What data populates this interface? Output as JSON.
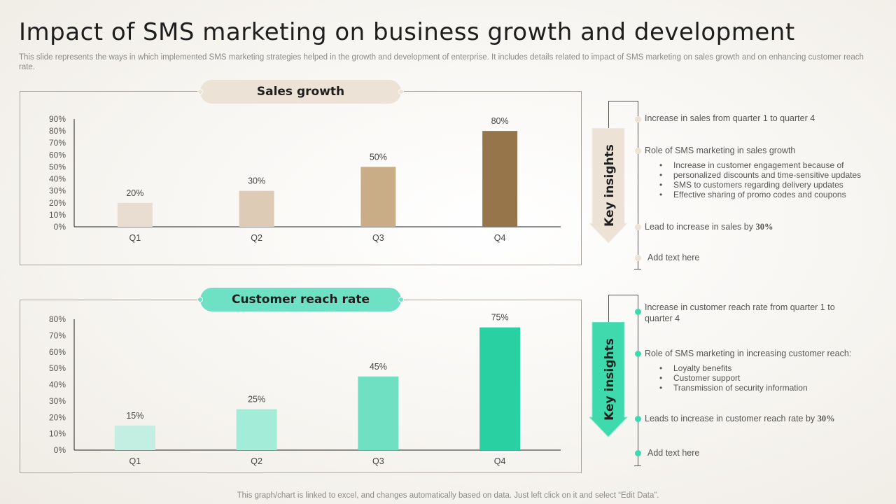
{
  "title": "Impact of SMS marketing on business growth and development",
  "subtitle": "This slide represents the ways in which implemented SMS marketing strategies helped in the growth and development of enterprise. It includes details related to impact of SMS marketing on sales growth and on enhancing customer reach rate.",
  "footer": "This graph/chart is linked to excel, and changes automatically based on data. Just left click on it and select “Edit Data”.",
  "colors": {
    "sales_bars": [
      "#e8ddd0",
      "#ddcbb6",
      "#c8ad87",
      "#957549"
    ],
    "sales_accent": "#ece2d6",
    "reach_bars": [
      "#c2efe2",
      "#a3ecd7",
      "#6fe0c2",
      "#29d0a2"
    ],
    "reach_accent": "#6ee0c4"
  },
  "chart_data": [
    {
      "type": "bar",
      "title": "Sales growth",
      "categories": [
        "Q1",
        "Q2",
        "Q3",
        "Q4"
      ],
      "values": [
        20,
        30,
        50,
        80
      ],
      "labels": [
        "20%",
        "30%",
        "50%",
        "80%"
      ],
      "yticks": [
        "0%",
        "10%",
        "20%",
        "30%",
        "40%",
        "50%",
        "60%",
        "70%",
        "80%",
        "90%"
      ],
      "ylim": [
        0,
        90
      ]
    },
    {
      "type": "bar",
      "title": "Customer reach rate",
      "categories": [
        "Q1",
        "Q2",
        "Q3",
        "Q4"
      ],
      "values": [
        15,
        25,
        45,
        75
      ],
      "labels": [
        "15%",
        "25%",
        "45%",
        "75%"
      ],
      "yticks": [
        "0%",
        "10%",
        "20%",
        "30%",
        "40%",
        "50%",
        "60%",
        "70%",
        "80%"
      ],
      "ylim": [
        0,
        80
      ]
    }
  ],
  "insights": [
    {
      "arrow_label": "Key insights",
      "item1": "Increase in sales from quarter 1 to quarter 4",
      "item2": "Role of SMS marketing in sales growth",
      "bullets": [
        "Increase in customer engagement because of",
        "personalized discounts and time-sensitive updates",
        "SMS to customers regarding delivery updates",
        "Effective sharing of promo codes and coupons"
      ],
      "item3_prefix": "Lead to increase in sales by ",
      "item3_value": "30%",
      "item4": "Add text here"
    },
    {
      "arrow_label": "Key insights",
      "item1_line1": "Increase in customer reach rate from quarter 1 to",
      "item1_line2": "quarter 4",
      "item2": "Role of SMS marketing in increasing customer reach:",
      "bullets": [
        "Loyalty benefits",
        "Customer support",
        "Transmission of security information"
      ],
      "item3_prefix": "Leads to increase in customer reach rate by ",
      "item3_value": "30%",
      "item4": "Add text here"
    }
  ]
}
